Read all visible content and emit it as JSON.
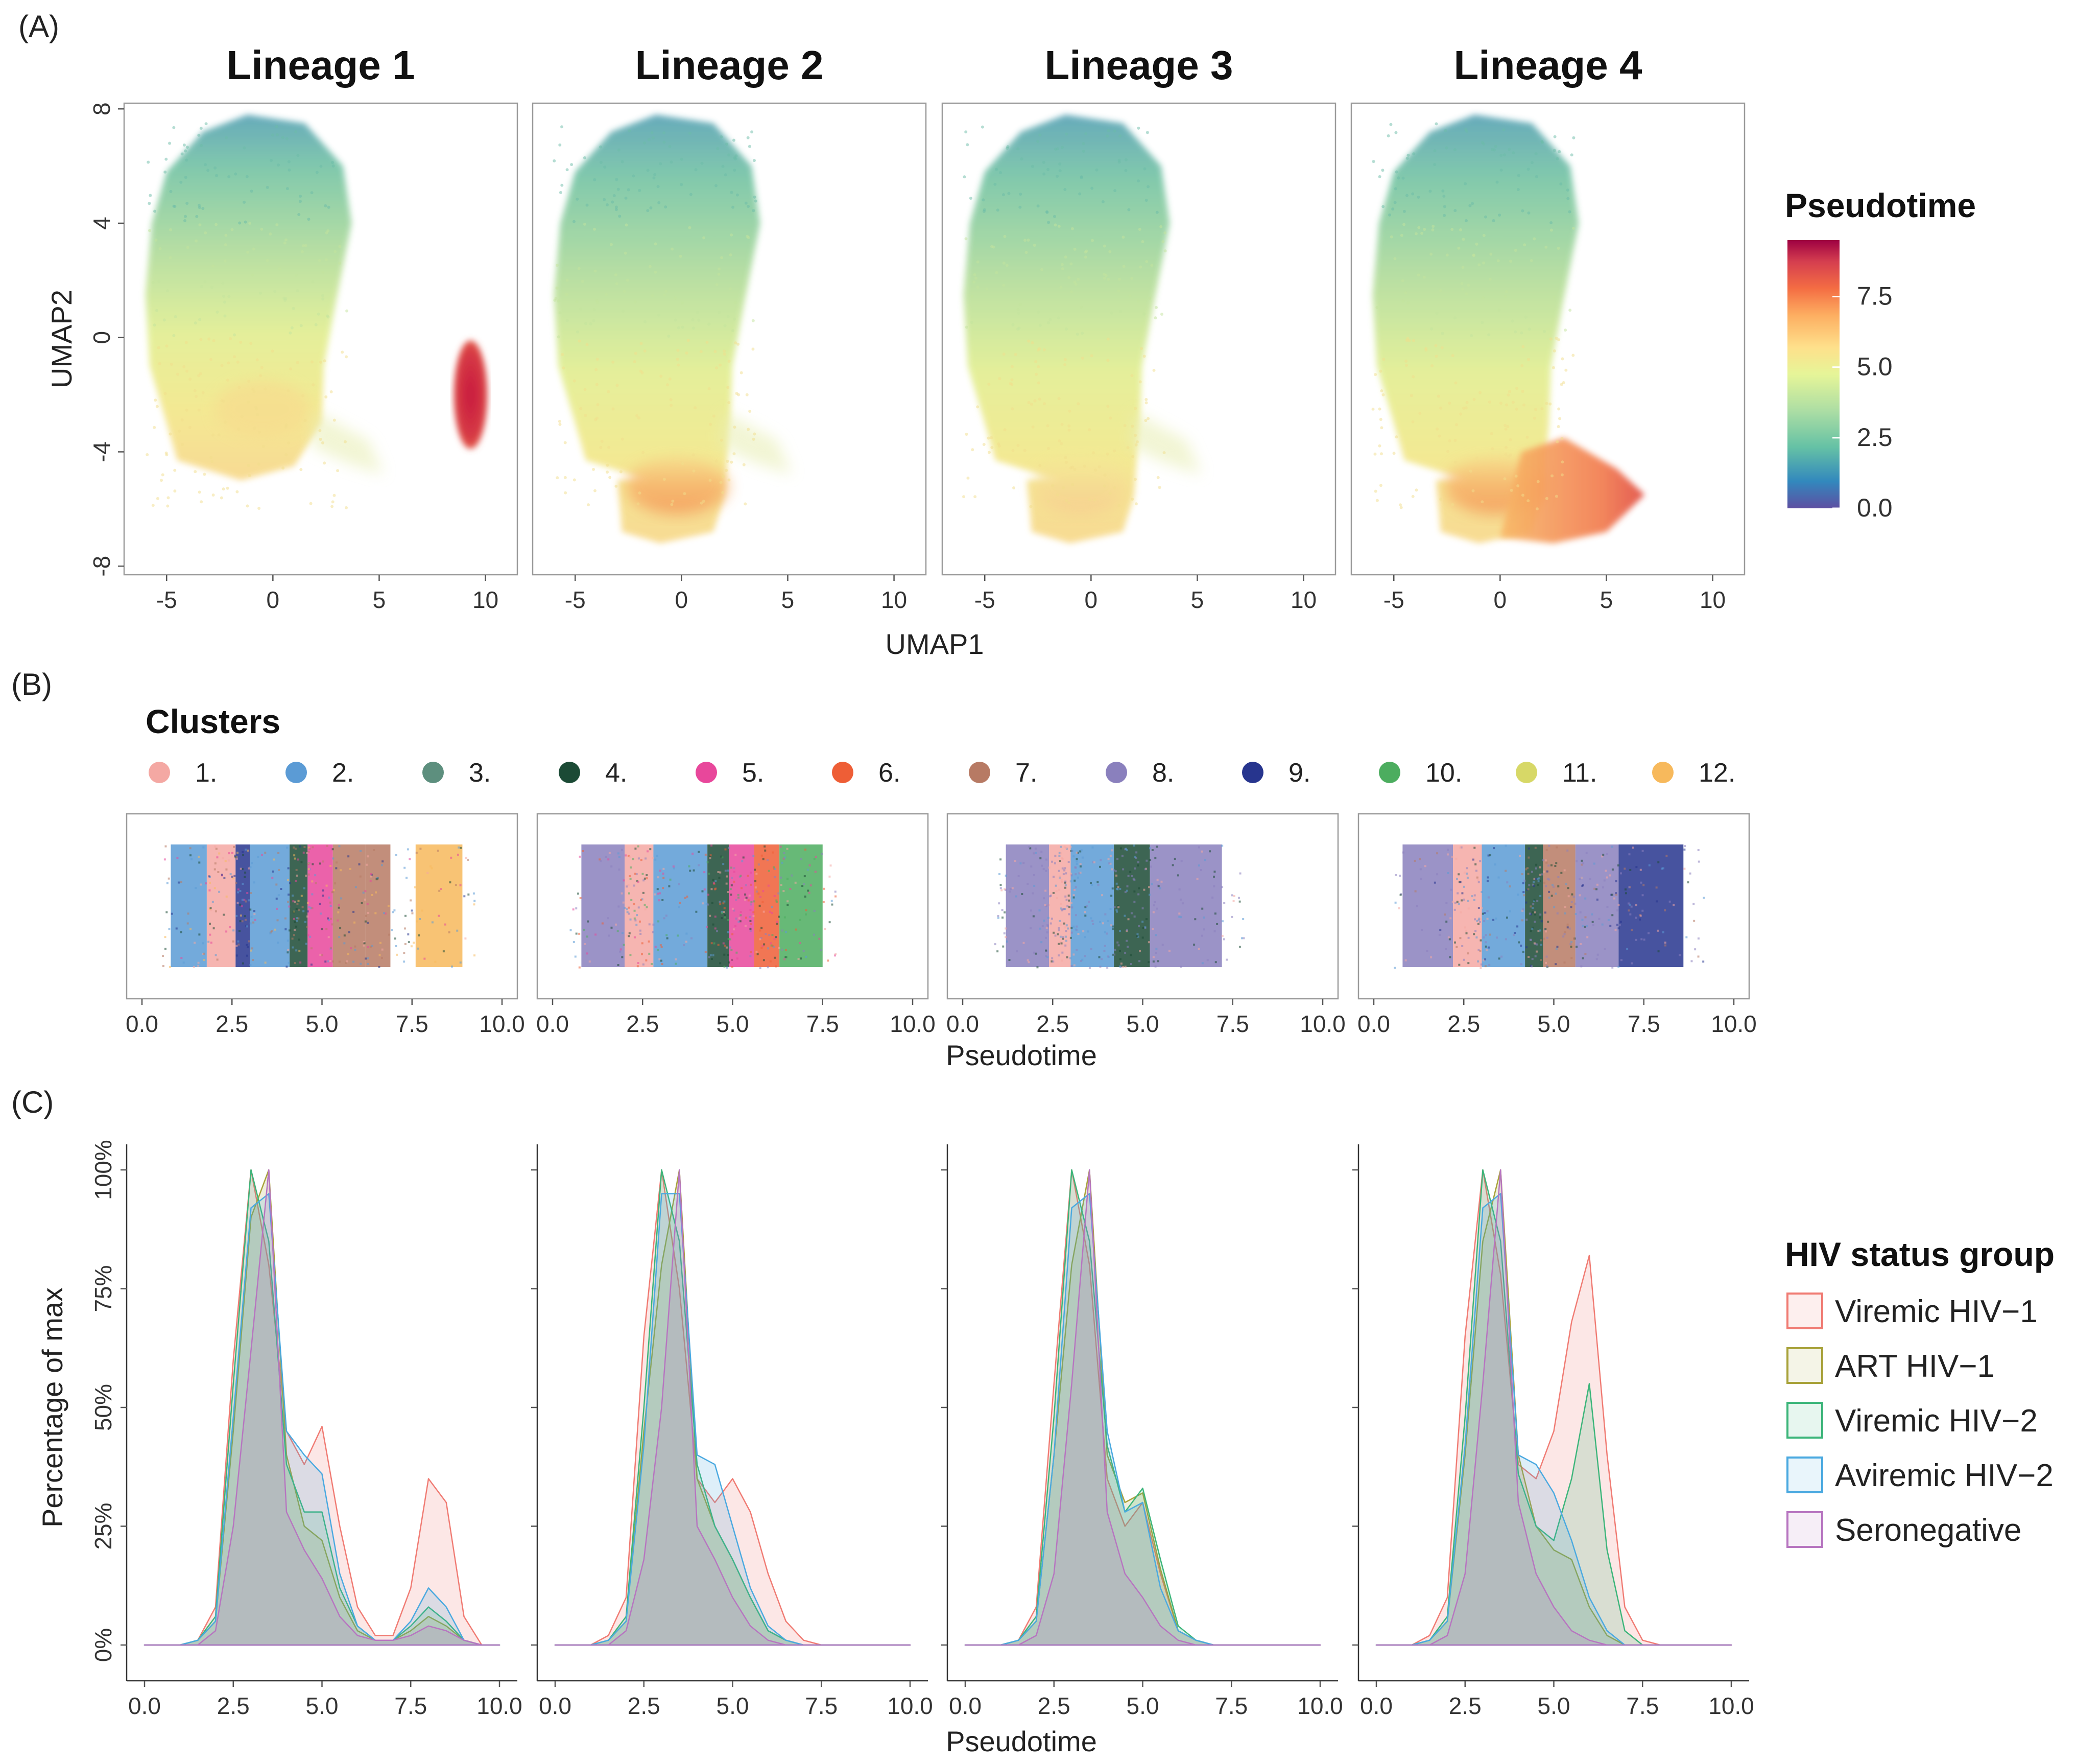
{
  "panel_labels": [
    "(A)",
    "(B)",
    "(C)"
  ],
  "colors": {
    "pseudotime_gradient": [
      "#5e4fa2",
      "#3288bd",
      "#66c2a5",
      "#abdda4",
      "#e6f598",
      "#fee08b",
      "#fdae61",
      "#f46d43",
      "#d53e4f",
      "#9e0142"
    ],
    "clusters": [
      "#f4a8a3",
      "#5b9bd5",
      "#5d8f7e",
      "#1b4a35",
      "#e8479b",
      "#ee5e36",
      "#b77a64",
      "#8a80bd",
      "#27358e",
      "#4cad5f",
      "#d7d867",
      "#f7b95c"
    ],
    "hiv": [
      "#f07b73",
      "#a8a23a",
      "#3cb57a",
      "#4aa9e0",
      "#b775c0"
    ]
  },
  "chart_data": [
    {
      "type": "scatter",
      "panel": "(A)",
      "titles": [
        "Lineage 1",
        "Lineage 2",
        "Lineage 3",
        "Lineage 4"
      ],
      "xlabel": "UMAP1",
      "ylabel": "UMAP2",
      "xticks": [
        "-5",
        "0",
        "5",
        "10"
      ],
      "xtick_values": [
        -5,
        0,
        5,
        10
      ],
      "yticks": [
        "8",
        "4",
        "0",
        "-4",
        "-8"
      ],
      "ytick_values": [
        8,
        4,
        0,
        -4,
        -8
      ],
      "xlim": [
        -7,
        11.5
      ],
      "ylim": [
        -8.3,
        8.2
      ],
      "color_scale": {
        "title": "Pseudotime",
        "ticks": [
          "0.0",
          "2.5",
          "5.0",
          "7.5"
        ],
        "tick_values": [
          0,
          2.5,
          5,
          7.5
        ],
        "range": [
          0,
          9.5
        ]
      },
      "lineages": [
        {
          "name": "Lineage 1",
          "arm": "none",
          "island": true,
          "island_pseudotime": 9.3
        },
        {
          "name": "Lineage 2",
          "arm": "bottom",
          "island": false
        },
        {
          "name": "Lineage 3",
          "arm": "bottom-pale",
          "island": false
        },
        {
          "name": "Lineage 4",
          "arm": "right",
          "island": false
        }
      ]
    },
    {
      "type": "scatter",
      "panel": "(B)",
      "legend_title": "Clusters",
      "legend_labels": [
        "1.",
        "2.",
        "3.",
        "4.",
        "5.",
        "6.",
        "7.",
        "8.",
        "9.",
        "10.",
        "11.",
        "12."
      ],
      "xlabel": "Pseudotime",
      "xticks": [
        "0.0",
        "2.5",
        "5.0",
        "7.5",
        "10.0"
      ],
      "xtick_values": [
        0,
        2.5,
        5,
        7.5,
        10
      ],
      "xlim": [
        0,
        10
      ],
      "lineage_bands": [
        [
          [
            0.8,
            1.8,
            1
          ],
          [
            1.8,
            2.6,
            0
          ],
          [
            2.6,
            3.0,
            8
          ],
          [
            3.0,
            4.1,
            1
          ],
          [
            4.1,
            4.6,
            3
          ],
          [
            4.6,
            5.3,
            4
          ],
          [
            5.3,
            6.2,
            6
          ],
          [
            6.2,
            6.9,
            6
          ],
          [
            7.6,
            8.9,
            11
          ]
        ],
        [
          [
            0.8,
            2.0,
            7
          ],
          [
            2.0,
            2.8,
            0
          ],
          [
            2.8,
            4.3,
            1
          ],
          [
            4.3,
            4.9,
            3
          ],
          [
            4.9,
            5.6,
            4
          ],
          [
            5.6,
            6.3,
            5
          ],
          [
            6.3,
            7.5,
            9
          ]
        ],
        [
          [
            1.2,
            2.4,
            7
          ],
          [
            2.4,
            3.0,
            0
          ],
          [
            3.0,
            4.2,
            1
          ],
          [
            4.2,
            5.2,
            3
          ],
          [
            5.2,
            7.2,
            7
          ]
        ],
        [
          [
            0.8,
            2.2,
            7
          ],
          [
            2.2,
            3.0,
            0
          ],
          [
            3.0,
            4.2,
            1
          ],
          [
            4.2,
            4.7,
            3
          ],
          [
            4.7,
            5.6,
            6
          ],
          [
            5.6,
            6.8,
            7
          ],
          [
            6.8,
            8.6,
            8
          ]
        ]
      ]
    },
    {
      "type": "area",
      "panel": "(C)",
      "xlabel": "Pseudotime",
      "ylabel": "Percentage of max",
      "xticks": [
        "0.0",
        "2.5",
        "5.0",
        "7.5",
        "10.0"
      ],
      "xtick_values": [
        0,
        2.5,
        5,
        7.5,
        10
      ],
      "yticks": [
        "0%",
        "25%",
        "50%",
        "75%",
        "100%"
      ],
      "ytick_values": [
        0,
        25,
        50,
        75,
        100
      ],
      "xlim": [
        0,
        10
      ],
      "ylim": [
        0,
        100
      ],
      "legend_title": "HIV status group",
      "x": [
        0.0,
        0.5,
        1.0,
        1.5,
        2.0,
        2.5,
        3.0,
        3.5,
        4.0,
        4.5,
        5.0,
        5.5,
        6.0,
        6.5,
        7.0,
        7.5,
        8.0,
        8.5,
        9.0,
        9.5,
        10.0
      ],
      "panels": [
        {
          "series": [
            {
              "name": "Viremic HIV−1",
              "values": [
                0,
                0,
                0,
                1,
                8,
                60,
                100,
                80,
                45,
                38,
                46,
                25,
                8,
                2,
                2,
                12,
                35,
                30,
                6,
                0,
                0
              ]
            },
            {
              "name": "ART HIV−1",
              "values": [
                0,
                0,
                0,
                1,
                5,
                45,
                90,
                100,
                40,
                25,
                22,
                10,
                3,
                1,
                1,
                3,
                6,
                4,
                1,
                0,
                0
              ]
            },
            {
              "name": "Viremic HIV−2",
              "values": [
                0,
                0,
                0,
                1,
                6,
                55,
                100,
                85,
                38,
                28,
                28,
                12,
                4,
                1,
                1,
                4,
                8,
                5,
                1,
                0,
                0
              ]
            },
            {
              "name": "Aviremic HIV−2",
              "values": [
                0,
                0,
                0,
                1,
                5,
                48,
                92,
                95,
                45,
                40,
                36,
                15,
                4,
                1,
                1,
                5,
                12,
                8,
                1,
                0,
                0
              ]
            },
            {
              "name": "Seronegative",
              "values": [
                0,
                0,
                0,
                0,
                3,
                25,
                62,
                100,
                28,
                20,
                14,
                6,
                2,
                1,
                1,
                2,
                4,
                3,
                1,
                0,
                0
              ]
            }
          ]
        },
        {
          "series": [
            {
              "name": "Viremic HIV−1",
              "values": [
                0,
                0,
                0,
                2,
                10,
                65,
                100,
                75,
                35,
                30,
                35,
                28,
                15,
                5,
                1,
                0,
                0,
                0,
                0,
                0,
                0
              ]
            },
            {
              "name": "ART HIV−1",
              "values": [
                0,
                0,
                0,
                1,
                5,
                45,
                80,
                100,
                35,
                25,
                18,
                10,
                3,
                1,
                0,
                0,
                0,
                0,
                0,
                0,
                0
              ]
            },
            {
              "name": "Viremic HIV−2",
              "values": [
                0,
                0,
                0,
                1,
                6,
                50,
                100,
                85,
                38,
                25,
                18,
                10,
                3,
                1,
                0,
                0,
                0,
                0,
                0,
                0,
                0
              ]
            },
            {
              "name": "Aviremic HIV−2",
              "values": [
                0,
                0,
                0,
                1,
                5,
                42,
                95,
                95,
                40,
                38,
                25,
                12,
                4,
                1,
                0,
                0,
                0,
                0,
                0,
                0,
                0
              ]
            },
            {
              "name": "Seronegative",
              "values": [
                0,
                0,
                0,
                0,
                3,
                18,
                50,
                100,
                25,
                18,
                10,
                4,
                1,
                0,
                0,
                0,
                0,
                0,
                0,
                0,
                0
              ]
            }
          ]
        },
        {
          "series": [
            {
              "name": "Viremic HIV−1",
              "values": [
                0,
                0,
                0,
                1,
                8,
                55,
                100,
                80,
                35,
                25,
                30,
                15,
                3,
                1,
                0,
                0,
                0,
                0,
                0,
                0,
                0
              ]
            },
            {
              "name": "ART HIV−1",
              "values": [
                0,
                0,
                0,
                1,
                5,
                40,
                80,
                100,
                40,
                30,
                32,
                16,
                3,
                1,
                0,
                0,
                0,
                0,
                0,
                0,
                0
              ]
            },
            {
              "name": "Viremic HIV−2",
              "values": [
                0,
                0,
                0,
                1,
                6,
                48,
                100,
                85,
                42,
                28,
                33,
                18,
                4,
                1,
                0,
                0,
                0,
                0,
                0,
                0,
                0
              ]
            },
            {
              "name": "Aviremic HIV−2",
              "values": [
                0,
                0,
                0,
                1,
                5,
                40,
                92,
                95,
                45,
                28,
                30,
                12,
                3,
                1,
                0,
                0,
                0,
                0,
                0,
                0,
                0
              ]
            },
            {
              "name": "Seronegative",
              "values": [
                0,
                0,
                0,
                0,
                2,
                15,
                55,
                100,
                28,
                15,
                10,
                4,
                1,
                0,
                0,
                0,
                0,
                0,
                0,
                0,
                0
              ]
            }
          ]
        },
        {
          "series": [
            {
              "name": "Viremic HIV−1",
              "values": [
                0,
                0,
                0,
                2,
                10,
                65,
                100,
                78,
                38,
                35,
                45,
                68,
                82,
                40,
                8,
                1,
                0,
                0,
                0,
                0,
                0
              ]
            },
            {
              "name": "ART HIV−1",
              "values": [
                0,
                0,
                0,
                1,
                5,
                40,
                85,
                100,
                40,
                25,
                20,
                18,
                8,
                2,
                0,
                0,
                0,
                0,
                0,
                0,
                0
              ]
            },
            {
              "name": "Viremic HIV−2",
              "values": [
                0,
                0,
                0,
                1,
                6,
                48,
                100,
                85,
                36,
                25,
                22,
                35,
                55,
                20,
                3,
                0,
                0,
                0,
                0,
                0,
                0
              ]
            },
            {
              "name": "Aviremic HIV−2",
              "values": [
                0,
                0,
                0,
                1,
                5,
                42,
                92,
                95,
                40,
                38,
                32,
                22,
                10,
                3,
                0,
                0,
                0,
                0,
                0,
                0,
                0
              ]
            },
            {
              "name": "Seronegative",
              "values": [
                0,
                0,
                0,
                0,
                2,
                15,
                55,
                100,
                30,
                15,
                8,
                3,
                1,
                0,
                0,
                0,
                0,
                0,
                0,
                0,
                0
              ]
            }
          ]
        }
      ]
    }
  ]
}
